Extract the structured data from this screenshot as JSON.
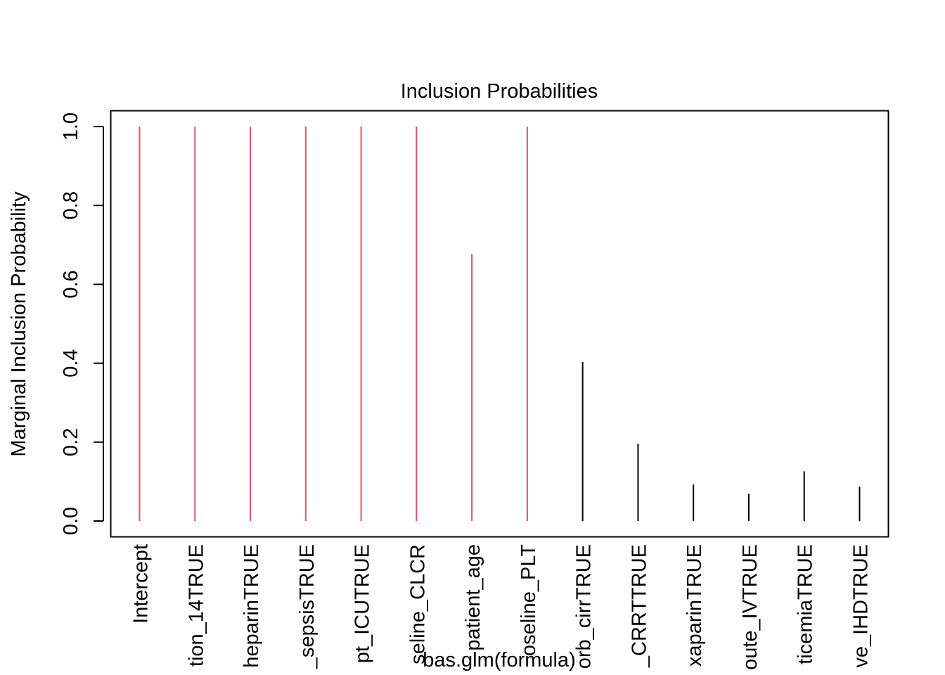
{
  "chart_data": {
    "type": "bar",
    "title": "Inclusion Probabilities",
    "ylabel": "Marginal Inclusion Probability",
    "xlabel": "",
    "footer": "bas.glm(formula)",
    "ylim": [
      0,
      1
    ],
    "yticks": [
      "0.0",
      "0.2",
      "0.4",
      "0.6",
      "0.8",
      "1.0"
    ],
    "ytick_values": [
      0,
      0.2,
      0.4,
      0.6,
      0.8,
      1.0
    ],
    "categories": [
      "Intercept",
      "tion_14TRUE",
      "heparinTRUE",
      "_sepsisTRUE",
      "pt_ICUTRUE",
      "seline_CLCR",
      "patient_age",
      "oseline_PLT",
      "orb_cirrTRUE",
      "_CRRTTRUE",
      "xaparinTRUE",
      "oute_IVTRUE",
      "ticemiaTRUE",
      "ve_IHDTRUE"
    ],
    "values": [
      1.0,
      1.0,
      1.0,
      1.0,
      1.0,
      1.0,
      0.677,
      1.0,
      0.403,
      0.196,
      0.093,
      0.069,
      0.126,
      0.087
    ],
    "highlighted": [
      true,
      true,
      true,
      true,
      true,
      true,
      true,
      true,
      false,
      false,
      false,
      false,
      false,
      false
    ],
    "colors": {
      "highlight": "#DF536B",
      "default": "#000000"
    },
    "grid": false,
    "legend": "none"
  }
}
